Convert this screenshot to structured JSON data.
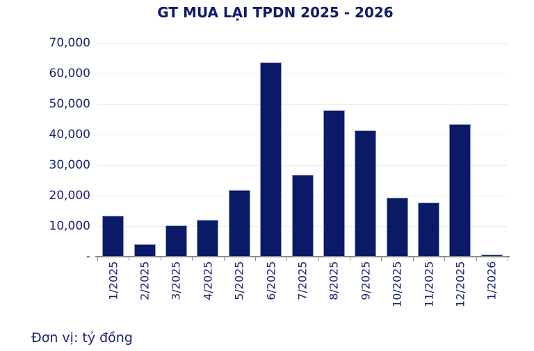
{
  "colors": {
    "bar_fill": "#0b1a66",
    "bar_border": "#8e9dc6",
    "title_text": "#121b6a",
    "axis_text": "#1b246f",
    "gridline": "#ededed",
    "axis_line": "#8c8c8c",
    "background": "#ffffff"
  },
  "chart_data": {
    "type": "bar",
    "title": "GT MUA LẠI TPDN 2025 - 2026",
    "unit_note": "Đơn vị: tỷ đồng",
    "categories": [
      "1/2025",
      "2/2025",
      "3/2025",
      "4/2025",
      "5/2025",
      "6/2025",
      "7/2025",
      "8/2025",
      "9/2025",
      "10/2025",
      "11/2025",
      "12/2025",
      "1/2026"
    ],
    "values": [
      13500,
      4000,
      10300,
      12000,
      21800,
      63700,
      26900,
      48000,
      41300,
      19400,
      17800,
      43400,
      600
    ],
    "xlabel": "",
    "ylabel": "",
    "ylim": [
      0,
      70000
    ],
    "ytick_step": 10000,
    "ytick_labels_bottom_to_top": [
      "-",
      "10,000",
      "20,000",
      "30,000",
      "40,000",
      "50,000",
      "60,000",
      "70,000"
    ],
    "grid": true,
    "legend": false,
    "bar_color": "#0b1a66"
  }
}
